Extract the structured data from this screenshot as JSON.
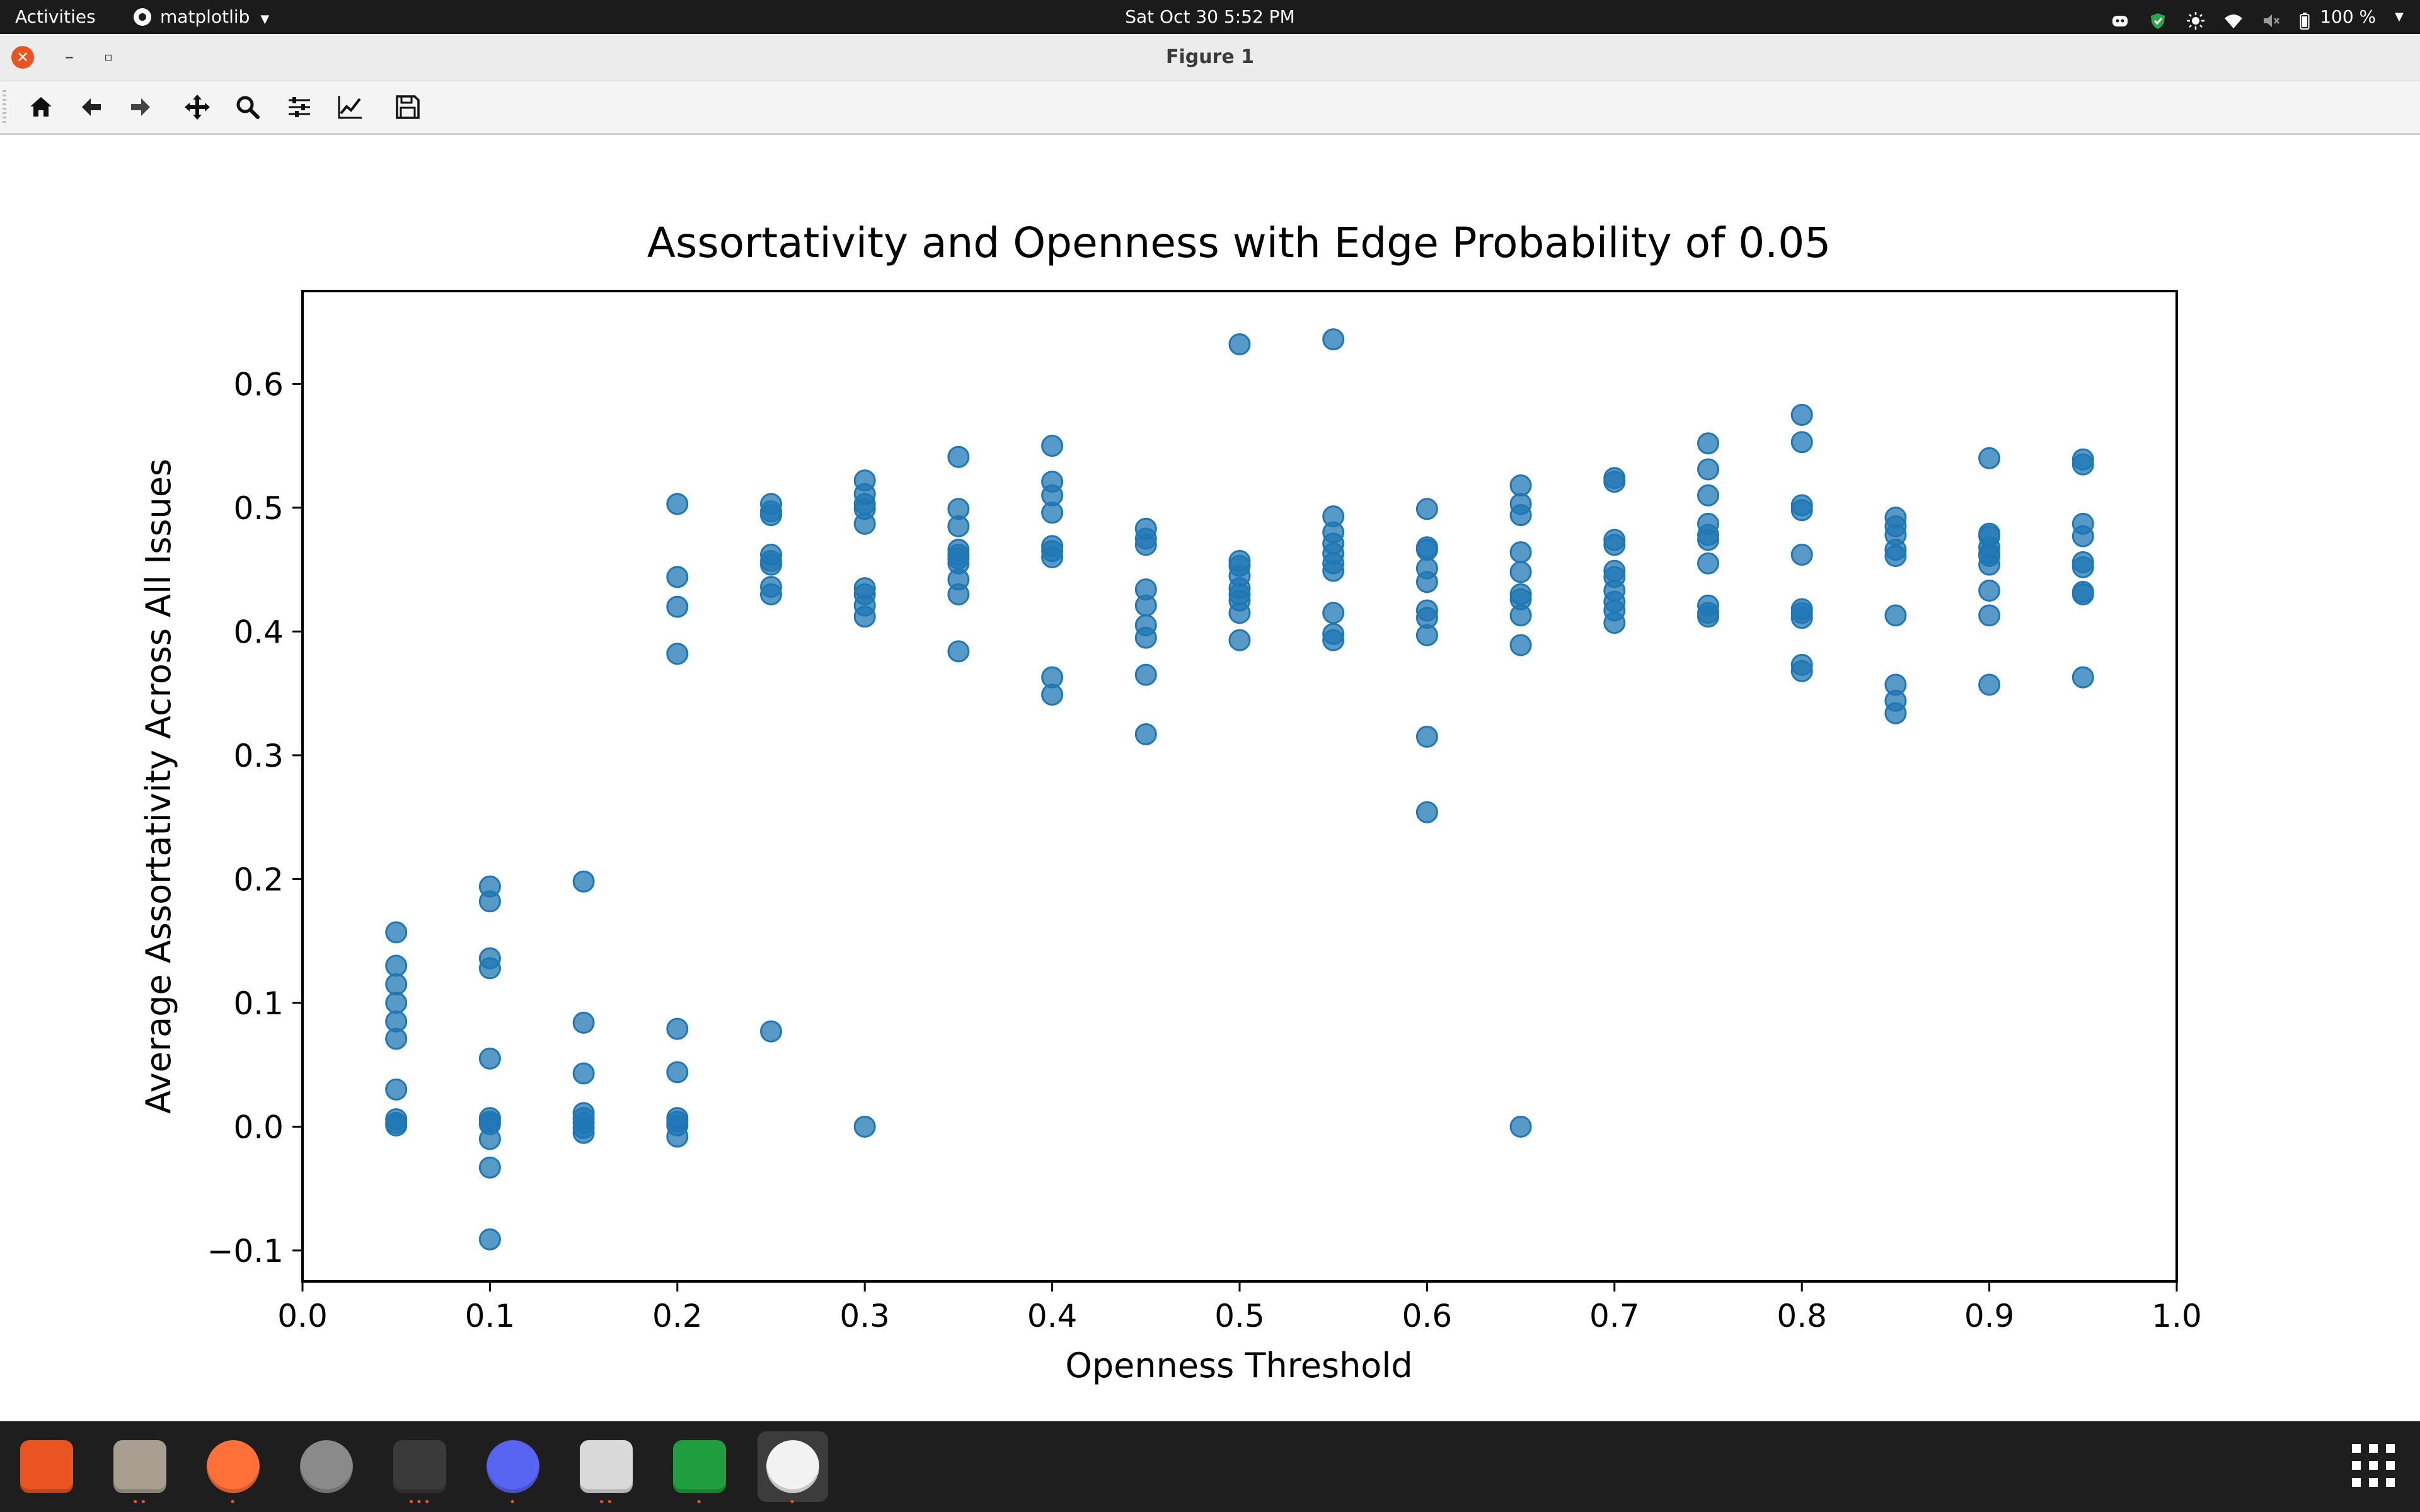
{
  "topbar": {
    "activities": "Activities",
    "app_menu": "matplotlib",
    "clock": "Sat Oct 30   5:52 PM",
    "battery": "100 %"
  },
  "window": {
    "title": "Figure 1"
  },
  "toolbar": {
    "tools": [
      "home-icon",
      "back-arrow-icon",
      "forward-arrow-icon",
      "pan-move-icon",
      "zoom-magnifier-icon",
      "subplots-sliders-icon",
      "edit-axes-icon",
      "save-floppy-icon"
    ]
  },
  "chart_data": {
    "type": "scatter",
    "title": "Assortativity and Openness with Edge Probability of 0.05",
    "xlabel": "Openness Threshold",
    "ylabel": "Average Assortativity Across All Issues",
    "xlim": [
      0.0,
      1.0
    ],
    "ylim": [
      -0.125,
      0.675
    ],
    "xticks": [
      0.0,
      0.1,
      0.2,
      0.3,
      0.4,
      0.5,
      0.6,
      0.7,
      0.8,
      0.9,
      1.0
    ],
    "yticks": [
      -0.1,
      0.0,
      0.1,
      0.2,
      0.3,
      0.4,
      0.5,
      0.6
    ],
    "xtick_labels": [
      "0.0",
      "0.1",
      "0.2",
      "0.3",
      "0.4",
      "0.5",
      "0.6",
      "0.7",
      "0.8",
      "0.9",
      "1.0"
    ],
    "ytick_labels": [
      "−0.1",
      "0.0",
      "0.1",
      "0.2",
      "0.3",
      "0.4",
      "0.5",
      "0.6"
    ],
    "grid": false,
    "marker_color": "#1f77b4",
    "groups": [
      {
        "x": 0.05,
        "y": [
          0.157,
          0.13,
          0.115,
          0.1,
          0.085,
          0.071,
          0.03,
          0.006,
          0.003,
          0.001
        ]
      },
      {
        "x": 0.1,
        "y": [
          0.194,
          0.182,
          0.136,
          0.128,
          0.055,
          0.007,
          0.004,
          0.002,
          -0.01,
          -0.033,
          -0.091
        ]
      },
      {
        "x": 0.15,
        "y": [
          0.198,
          0.084,
          0.043,
          0.011,
          0.007,
          0.003,
          -0.001,
          -0.005
        ]
      },
      {
        "x": 0.2,
        "y": [
          0.503,
          0.444,
          0.42,
          0.382,
          0.079,
          0.044,
          0.007,
          0.004,
          0.001,
          -0.008
        ]
      },
      {
        "x": 0.25,
        "y": [
          0.503,
          0.497,
          0.494,
          0.462,
          0.457,
          0.454,
          0.436,
          0.43,
          0.077
        ]
      },
      {
        "x": 0.3,
        "y": [
          0.522,
          0.511,
          0.503,
          0.499,
          0.487,
          0.435,
          0.43,
          0.421,
          0.412,
          0.0
        ]
      },
      {
        "x": 0.35,
        "y": [
          0.541,
          0.499,
          0.485,
          0.466,
          0.462,
          0.459,
          0.455,
          0.442,
          0.43,
          0.384
        ]
      },
      {
        "x": 0.4,
        "y": [
          0.55,
          0.521,
          0.51,
          0.496,
          0.469,
          0.465,
          0.46,
          0.363,
          0.349
        ]
      },
      {
        "x": 0.45,
        "y": [
          0.483,
          0.475,
          0.47,
          0.434,
          0.421,
          0.405,
          0.395,
          0.365,
          0.317
        ]
      },
      {
        "x": 0.5,
        "y": [
          0.632,
          0.457,
          0.453,
          0.445,
          0.435,
          0.43,
          0.425,
          0.415,
          0.393
        ]
      },
      {
        "x": 0.55,
        "y": [
          0.636,
          0.493,
          0.48,
          0.471,
          0.463,
          0.455,
          0.449,
          0.415,
          0.398,
          0.393
        ]
      },
      {
        "x": 0.6,
        "y": [
          0.499,
          0.468,
          0.466,
          0.451,
          0.44,
          0.417,
          0.411,
          0.397,
          0.315,
          0.254
        ]
      },
      {
        "x": 0.65,
        "y": [
          0.518,
          0.503,
          0.494,
          0.464,
          0.448,
          0.43,
          0.426,
          0.413,
          0.389,
          0.0
        ]
      },
      {
        "x": 0.7,
        "y": [
          0.524,
          0.521,
          0.474,
          0.47,
          0.449,
          0.444,
          0.433,
          0.424,
          0.417,
          0.407
        ]
      },
      {
        "x": 0.75,
        "y": [
          0.552,
          0.531,
          0.51,
          0.487,
          0.478,
          0.474,
          0.455,
          0.421,
          0.415,
          0.412
        ]
      },
      {
        "x": 0.8,
        "y": [
          0.575,
          0.553,
          0.502,
          0.498,
          0.462,
          0.418,
          0.415,
          0.411,
          0.373,
          0.368
        ]
      },
      {
        "x": 0.85,
        "y": [
          0.492,
          0.485,
          0.478,
          0.466,
          0.461,
          0.413,
          0.357,
          0.344,
          0.334
        ]
      },
      {
        "x": 0.9,
        "y": [
          0.54,
          0.479,
          0.477,
          0.468,
          0.463,
          0.461,
          0.454,
          0.433,
          0.413,
          0.357
        ]
      },
      {
        "x": 0.95,
        "y": [
          0.539,
          0.535,
          0.487,
          0.477,
          0.456,
          0.452,
          0.432,
          0.43,
          0.363
        ]
      }
    ]
  },
  "dock": {
    "apps": [
      {
        "name": "ubuntu-software-icon",
        "color": "#e95420",
        "dots": ""
      },
      {
        "name": "files-icon",
        "color": "#a89f91",
        "dots": "••"
      },
      {
        "name": "firefox-icon",
        "color": "#ff7139",
        "dots": "•"
      },
      {
        "name": "settings-icon",
        "color": "#8a8a8a",
        "dots": ""
      },
      {
        "name": "terminal-icon",
        "color": "#3a3a3a",
        "dots": "•••"
      },
      {
        "name": "discord-icon",
        "color": "#5865f2",
        "dots": "•"
      },
      {
        "name": "document-viewer-icon",
        "color": "#d9d9d9",
        "dots": "••"
      },
      {
        "name": "spreadsheet-icon",
        "color": "#1e9e3e",
        "dots": "•"
      },
      {
        "name": "matplotlib-icon",
        "color": "#f2f2f2",
        "dots": "•"
      }
    ]
  }
}
